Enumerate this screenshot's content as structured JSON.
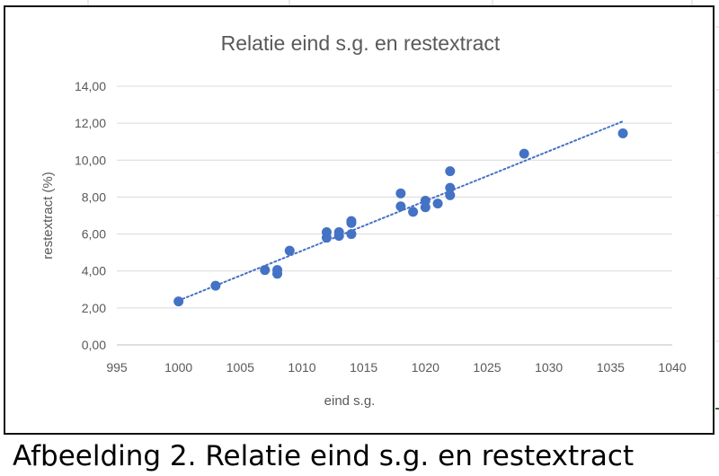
{
  "caption": "Afbeelding 2. Relatie eind s.g. en restextract",
  "chart_data": {
    "type": "scatter",
    "title": "Relatie eind s.g. en restextract",
    "xlabel": "eind s.g.",
    "ylabel": "restextract (%)",
    "xlim": [
      995,
      1040
    ],
    "ylim": [
      0,
      14
    ],
    "x_ticks": [
      "995",
      "1000",
      "1005",
      "1010",
      "1015",
      "1020",
      "1025",
      "1030",
      "1035",
      "1040"
    ],
    "y_ticks": [
      "0,00",
      "2,00",
      "4,00",
      "6,00",
      "8,00",
      "10,00",
      "12,00",
      "14,00"
    ],
    "grid": "horizontal",
    "legend": "none",
    "colors": {
      "points": "#4472C4",
      "trendline": "#4472C4",
      "grid": "#d9d9d9",
      "text": "#595959"
    },
    "points": [
      {
        "x": 1000,
        "y": 2.35
      },
      {
        "x": 1003,
        "y": 3.2
      },
      {
        "x": 1007,
        "y": 4.05
      },
      {
        "x": 1008,
        "y": 4.05
      },
      {
        "x": 1008,
        "y": 3.85
      },
      {
        "x": 1009,
        "y": 5.1
      },
      {
        "x": 1012,
        "y": 6.1
      },
      {
        "x": 1012,
        "y": 5.8
      },
      {
        "x": 1013,
        "y": 6.1
      },
      {
        "x": 1013,
        "y": 5.9
      },
      {
        "x": 1014,
        "y": 6.6
      },
      {
        "x": 1014,
        "y": 6.7
      },
      {
        "x": 1014,
        "y": 6.0
      },
      {
        "x": 1018,
        "y": 8.2
      },
      {
        "x": 1018,
        "y": 7.5
      },
      {
        "x": 1019,
        "y": 7.2
      },
      {
        "x": 1020,
        "y": 7.8
      },
      {
        "x": 1020,
        "y": 7.45
      },
      {
        "x": 1021,
        "y": 7.65
      },
      {
        "x": 1022,
        "y": 9.4
      },
      {
        "x": 1022,
        "y": 8.5
      },
      {
        "x": 1022,
        "y": 8.1
      },
      {
        "x": 1028,
        "y": 10.35
      },
      {
        "x": 1036,
        "y": 11.45
      }
    ],
    "trendline": {
      "type": "linear",
      "style": "dotted",
      "x": [
        1000,
        1036
      ],
      "y": [
        2.4,
        12.1
      ]
    }
  }
}
